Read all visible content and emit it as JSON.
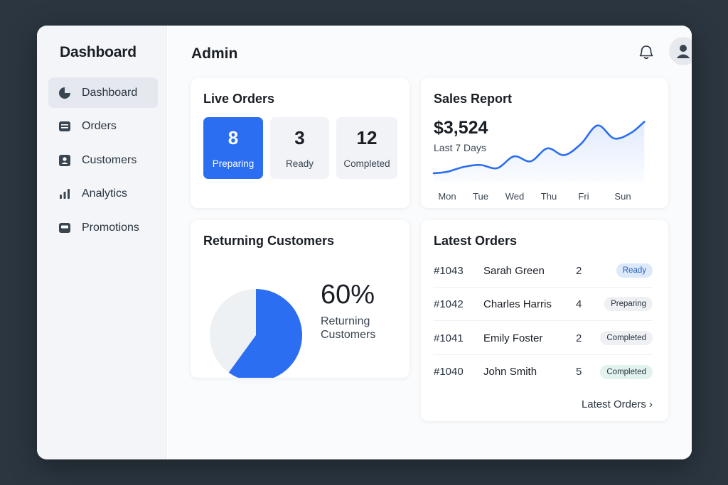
{
  "sidebar": {
    "brand": "Dashboard",
    "items": [
      {
        "label": "Dashboard",
        "icon": "pie-chart-icon",
        "active": true
      },
      {
        "label": "Orders",
        "icon": "list-icon"
      },
      {
        "label": "Customers",
        "icon": "person-card-icon"
      },
      {
        "label": "Analytics",
        "icon": "bar-chart-icon"
      },
      {
        "label": "Promotions",
        "icon": "tag-icon"
      }
    ]
  },
  "header": {
    "title": "Admin",
    "icons": [
      "bell-icon",
      "user-avatar-icon"
    ]
  },
  "live_orders": {
    "title": "Live Orders",
    "tiles": [
      {
        "count": "8",
        "label": "Preparing",
        "active": true
      },
      {
        "count": "3",
        "label": "Ready"
      },
      {
        "count": "12",
        "label": "Completed"
      }
    ]
  },
  "sales_report": {
    "title": "Sales Report",
    "amount": "$3,524",
    "period": "Last 7 Days"
  },
  "returning_customers": {
    "title": "Returning Customers",
    "percent": "60%",
    "label": "Returning Customers"
  },
  "latest_orders": {
    "title": "Latest Orders",
    "rows": [
      {
        "id": "#1043",
        "name": "Sarah Green",
        "qty": "2",
        "status": "Ready"
      },
      {
        "id": "#1042",
        "name": "Charles Harris",
        "qty": "4",
        "status": "Preparing"
      },
      {
        "id": "#1041",
        "name": "Emily Foster",
        "qty": "2",
        "status": "Completed"
      },
      {
        "id": "#1040",
        "name": "John Smith",
        "qty": "5",
        "status": "Completed"
      }
    ],
    "view_all": "Latest Orders ›"
  },
  "colors": {
    "accent": "#2b6ef2",
    "badge_ready_bg": "#dbe9fb",
    "badge_ready_fg": "#2a5fb8",
    "badge_preparing_bg": "#eef0f3",
    "badge_completed_bg": "#eef0f3",
    "badge_completed_alt_bg": "#e2f2ee"
  },
  "chart_data": [
    {
      "type": "line",
      "categories": [
        "Mon",
        "Tue",
        "Wed",
        "Thu",
        "Fri",
        "Sun"
      ],
      "x": [
        0,
        0.5,
        1,
        1.5,
        2,
        2.5,
        3,
        3.5,
        4,
        4.5,
        5,
        5.5,
        5.9
      ],
      "values": [
        15,
        23,
        26,
        21,
        40,
        32,
        53,
        42,
        60,
        90,
        69,
        78,
        96
      ],
      "ylim": [
        0,
        100
      ],
      "area_fill": true,
      "grid": false,
      "title": "Sales Report"
    },
    {
      "type": "pie",
      "labels": [
        "Returning Customers",
        ""
      ],
      "values": [
        60,
        40
      ],
      "colors": [
        "#2b6ef2",
        "#eef1f4"
      ],
      "title": "Returning Customers"
    }
  ]
}
